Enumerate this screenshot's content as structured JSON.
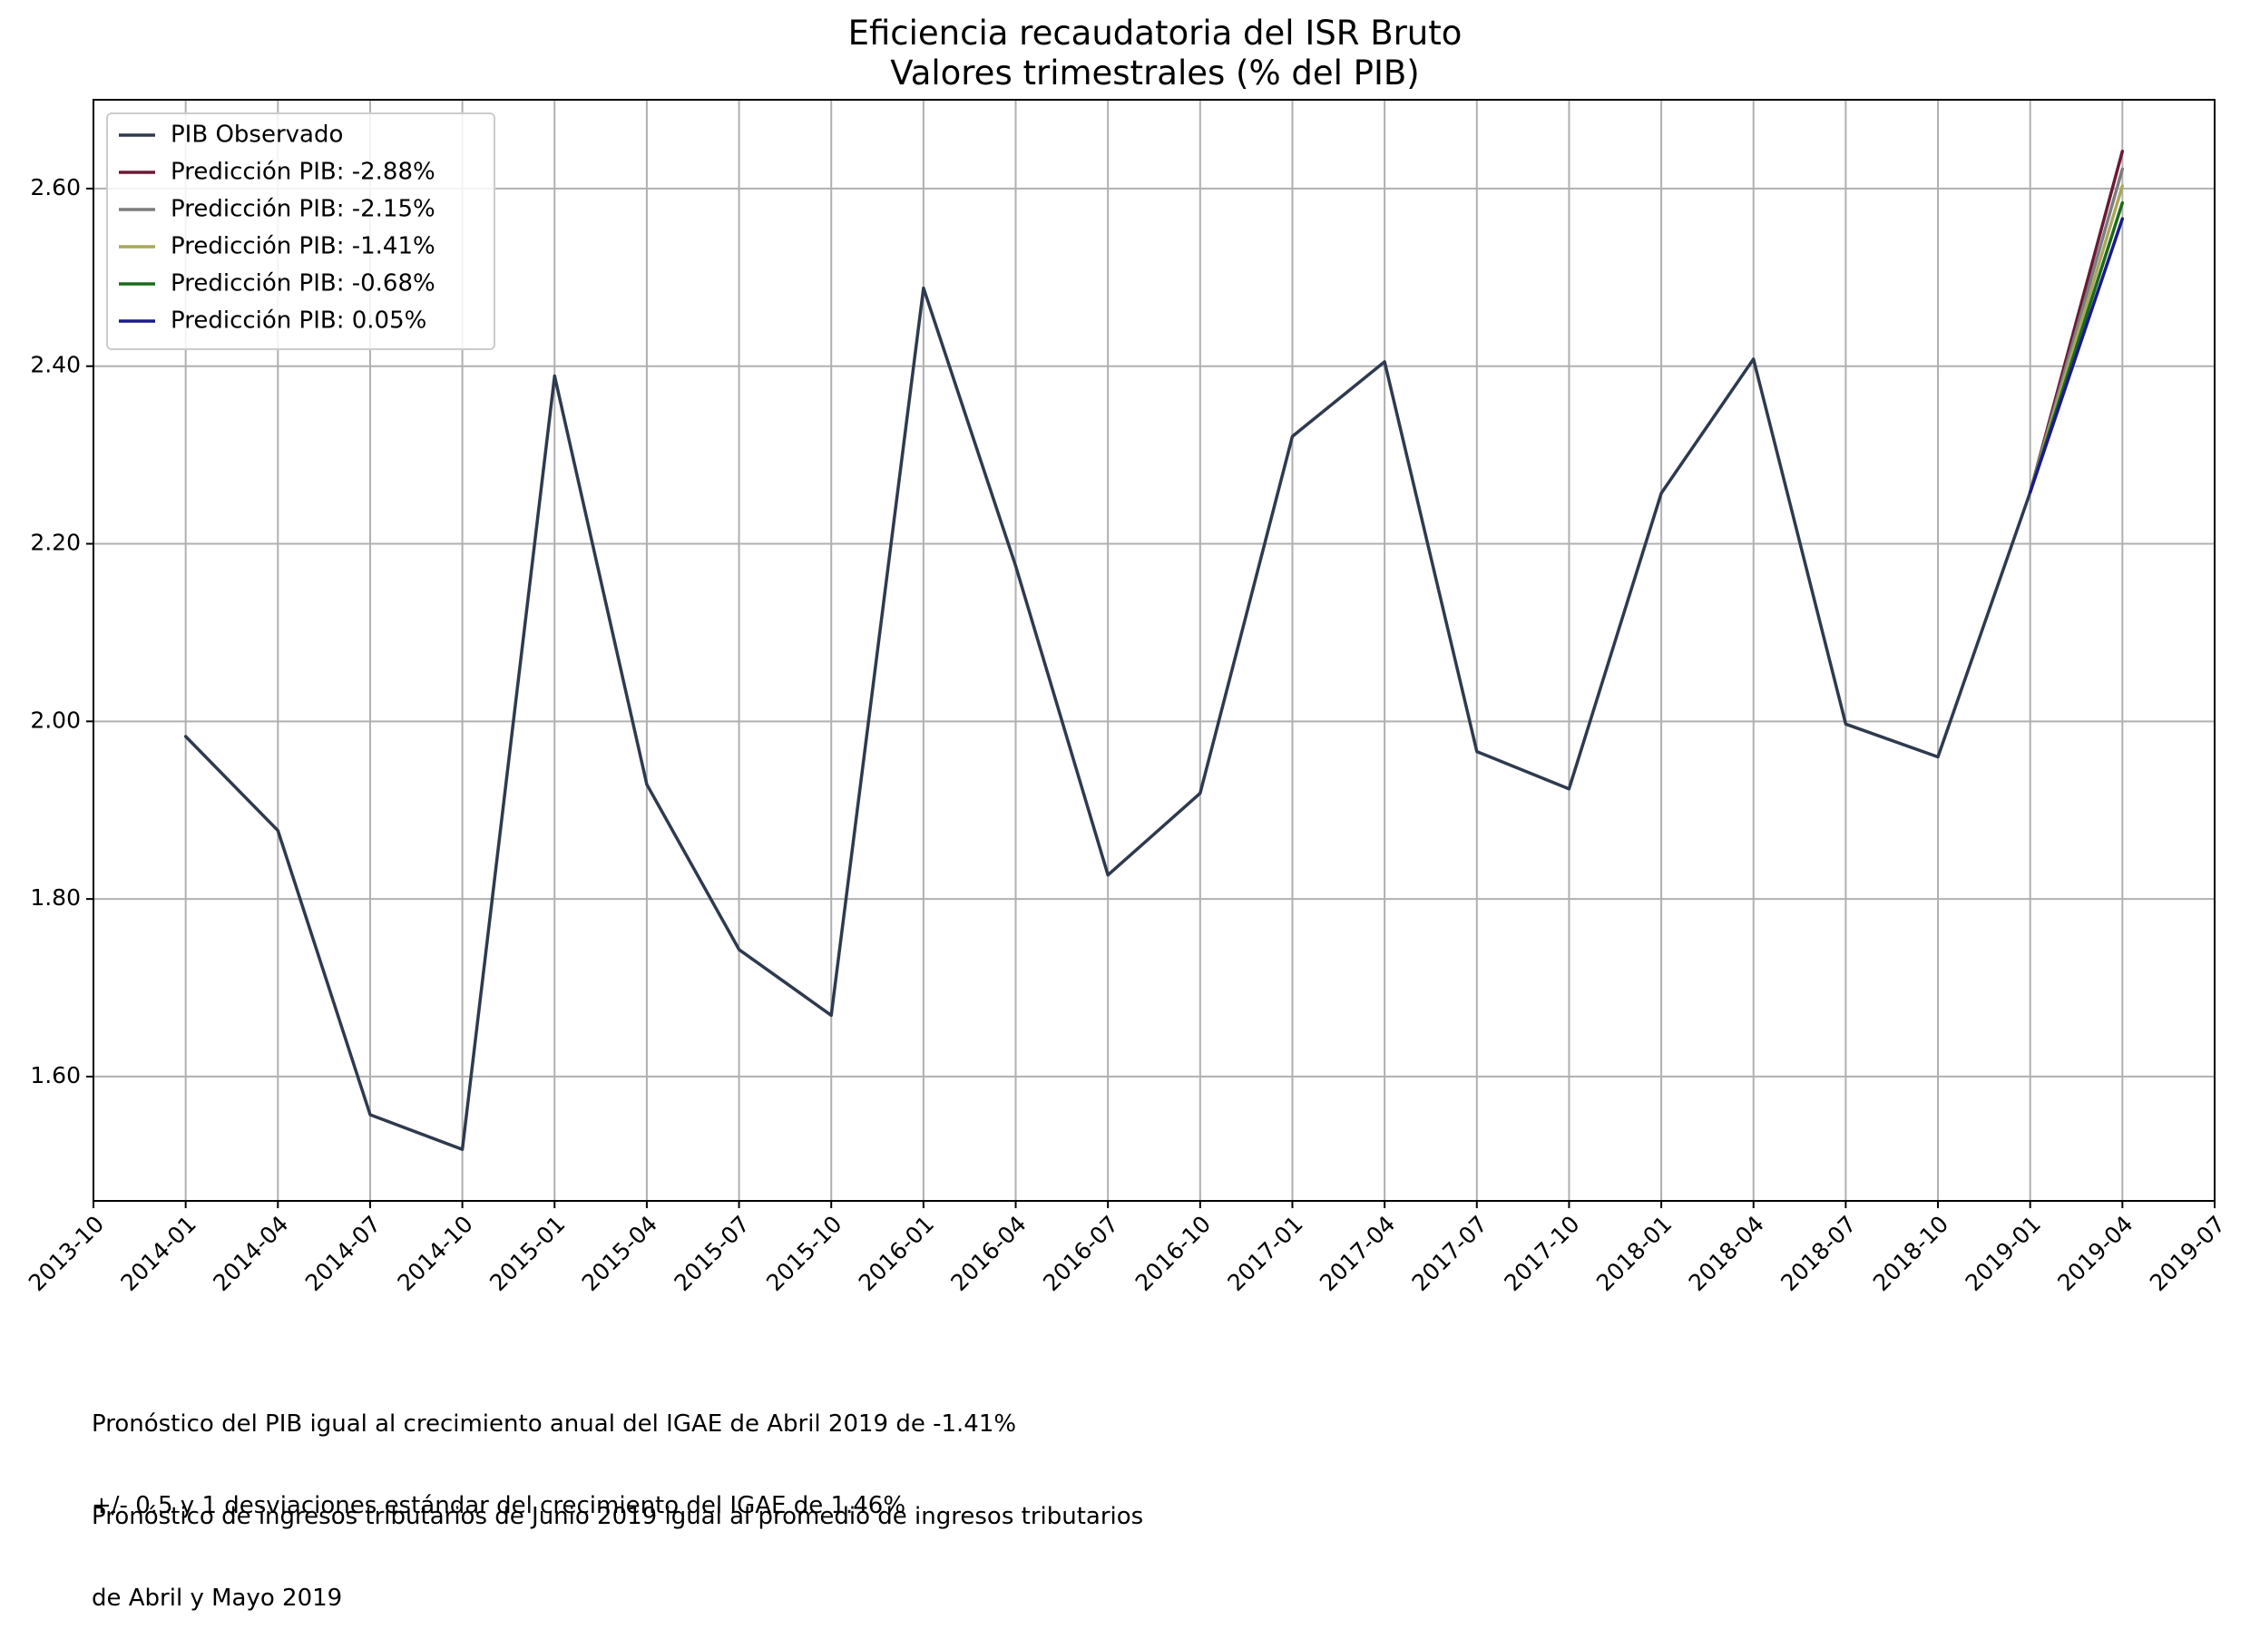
{
  "chart_data": {
    "type": "line",
    "title": [
      "Eficiencia recaudatoria del ISR Bruto",
      "Valores trimestrales (% del PIB)"
    ],
    "xlabel": "",
    "ylabel": "",
    "ylim": [
      1.46,
      2.7
    ],
    "yticks": [
      1.6,
      1.8,
      2.0,
      2.2,
      2.4,
      2.6
    ],
    "ytick_labels": [
      "1.60",
      "1.80",
      "2.00",
      "2.20",
      "2.40",
      "2.60"
    ],
    "xlim": [
      "2013-10",
      "2019-07"
    ],
    "xticks": [
      "2013-10",
      "2014-01",
      "2014-04",
      "2014-07",
      "2014-10",
      "2015-01",
      "2015-04",
      "2015-07",
      "2015-10",
      "2016-01",
      "2016-04",
      "2016-07",
      "2016-10",
      "2017-01",
      "2017-04",
      "2017-07",
      "2017-10",
      "2018-01",
      "2018-04",
      "2018-07",
      "2018-10",
      "2019-01",
      "2019-04",
      "2019-07"
    ],
    "grid": true,
    "legend_position": "top-left",
    "series": [
      {
        "name": "PIB Observado",
        "color": "#2e3a4e",
        "x": [
          "2014-01",
          "2014-04",
          "2014-07",
          "2014-10",
          "2015-01",
          "2015-04",
          "2015-07",
          "2015-10",
          "2016-01",
          "2016-04",
          "2016-07",
          "2016-10",
          "2017-01",
          "2017-04",
          "2017-07",
          "2017-10",
          "2018-01",
          "2018-04",
          "2018-07",
          "2018-10",
          "2019-01"
        ],
        "y": [
          1.983,
          1.877,
          1.557,
          1.518,
          2.389,
          1.929,
          1.743,
          1.669,
          2.488,
          2.175,
          1.827,
          1.919,
          2.321,
          2.405,
          1.966,
          1.924,
          2.257,
          2.408,
          1.997,
          1.96,
          2.258
        ]
      },
      {
        "name": "Predicción PIB: -2.88%",
        "color": "#6b1a36",
        "x": [
          "2019-01",
          "2019-04"
        ],
        "y": [
          2.258,
          2.642
        ]
      },
      {
        "name": "Predicción PIB: -2.15%",
        "color": "#7d7d7d",
        "x": [
          "2019-01",
          "2019-04"
        ],
        "y": [
          2.258,
          2.622
        ]
      },
      {
        "name": "Predicción PIB: -1.41%",
        "color": "#a8a85c",
        "x": [
          "2019-01",
          "2019-04"
        ],
        "y": [
          2.258,
          2.603
        ]
      },
      {
        "name": "Predicción PIB: -0.68%",
        "color": "#1a6b1a",
        "x": [
          "2019-01",
          "2019-04"
        ],
        "y": [
          2.258,
          2.584
        ]
      },
      {
        "name": "Predicción PIB: 0.05%",
        "color": "#1a1a8c",
        "x": [
          "2019-01",
          "2019-04"
        ],
        "y": [
          2.258,
          2.566
        ]
      }
    ]
  },
  "notes": {
    "line1": "Pronóstico del PIB igual al crecimiento anual del IGAE de Abril 2019 de -1.41%",
    "line2": "+/- 0.5 y 1 desviaciones estándar del crecimiento del IGAE de 1.46%",
    "line3": "Pronóstico de ingresos tributarios de Junio 2019 igual al promedio de ingresos tributarios",
    "line4": "de Abril y Mayo 2019"
  }
}
